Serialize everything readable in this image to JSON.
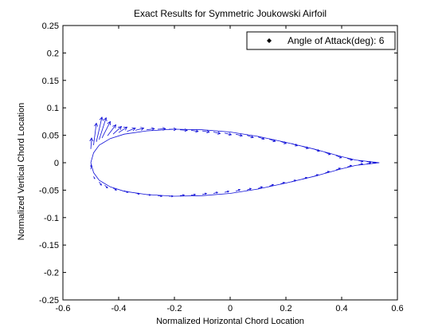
{
  "colors": {
    "vectors": "#1010d8",
    "airfoil": "#1010d8",
    "frame": "#000000",
    "background": "#ffffff"
  },
  "chart_data": {
    "type": "quiver",
    "title": "Exact Results for Symmetric Joukowski Airfoil",
    "xlabel": "Normalized Horizontal Chord Location",
    "ylabel": "Normalized Vertical Chord Location",
    "xlim": [
      -0.6,
      0.6
    ],
    "ylim": [
      -0.25,
      0.25
    ],
    "xticks": [
      "-0.6",
      "-0.4",
      "-0.2",
      "0",
      "0.2",
      "0.4",
      "0.6"
    ],
    "yticks": [
      "0.25",
      "0.2",
      "0.15",
      "0.1",
      "0.05",
      "0",
      "-0.05",
      "-0.1",
      "-0.15",
      "-0.2",
      "-0.25"
    ],
    "grid": false,
    "legend": {
      "label": "Angle of Attack(deg): 6",
      "placement": "top-right",
      "marker": "diamond"
    },
    "airfoil_outline": [
      [
        0.535,
        0.0
      ],
      [
        0.45,
        0.005
      ],
      [
        0.4,
        0.011
      ],
      [
        0.3,
        0.025
      ],
      [
        0.2,
        0.037
      ],
      [
        0.1,
        0.048
      ],
      [
        0.0,
        0.056
      ],
      [
        -0.1,
        0.06
      ],
      [
        -0.2,
        0.061
      ],
      [
        -0.3,
        0.058
      ],
      [
        -0.38,
        0.052
      ],
      [
        -0.43,
        0.044
      ],
      [
        -0.47,
        0.032
      ],
      [
        -0.49,
        0.018
      ],
      [
        -0.5,
        0.0
      ],
      [
        -0.49,
        -0.018
      ],
      [
        -0.47,
        -0.032
      ],
      [
        -0.43,
        -0.044
      ],
      [
        -0.38,
        -0.052
      ],
      [
        -0.3,
        -0.058
      ],
      [
        -0.2,
        -0.061
      ],
      [
        -0.1,
        -0.06
      ],
      [
        0.0,
        -0.056
      ],
      [
        0.1,
        -0.048
      ],
      [
        0.2,
        -0.037
      ],
      [
        0.3,
        -0.025
      ],
      [
        0.4,
        -0.011
      ],
      [
        0.45,
        -0.005
      ],
      [
        0.535,
        0.0
      ]
    ],
    "velocity_vectors": [
      {
        "x": -0.5,
        "y": 0.025,
        "u": 0.003,
        "v": 0.02
      },
      {
        "x": -0.49,
        "y": 0.032,
        "u": 0.01,
        "v": 0.04
      },
      {
        "x": -0.48,
        "y": 0.038,
        "u": 0.02,
        "v": 0.045
      },
      {
        "x": -0.47,
        "y": 0.042,
        "u": 0.025,
        "v": 0.04
      },
      {
        "x": -0.46,
        "y": 0.045,
        "u": 0.03,
        "v": 0.03
      },
      {
        "x": -0.44,
        "y": 0.049,
        "u": 0.03,
        "v": 0.02
      },
      {
        "x": -0.42,
        "y": 0.052,
        "u": 0.03,
        "v": 0.014
      },
      {
        "x": -0.4,
        "y": 0.055,
        "u": 0.03,
        "v": 0.01
      },
      {
        "x": -0.37,
        "y": 0.057,
        "u": 0.03,
        "v": 0.006
      },
      {
        "x": -0.34,
        "y": 0.059,
        "u": 0.03,
        "v": 0.004
      },
      {
        "x": -0.3,
        "y": 0.06,
        "u": 0.028,
        "v": 0.002
      },
      {
        "x": -0.26,
        "y": 0.061,
        "u": 0.028,
        "v": 0.001
      },
      {
        "x": -0.22,
        "y": 0.061,
        "u": 0.027,
        "v": 0.0
      },
      {
        "x": -0.18,
        "y": 0.06,
        "u": 0.026,
        "v": -0.001
      },
      {
        "x": -0.14,
        "y": 0.059,
        "u": 0.025,
        "v": -0.002
      },
      {
        "x": -0.1,
        "y": 0.058,
        "u": 0.025,
        "v": -0.002
      },
      {
        "x": -0.06,
        "y": 0.056,
        "u": 0.024,
        "v": -0.003
      },
      {
        "x": -0.02,
        "y": 0.054,
        "u": 0.024,
        "v": -0.003
      },
      {
        "x": 0.02,
        "y": 0.052,
        "u": 0.023,
        "v": -0.003
      },
      {
        "x": 0.06,
        "y": 0.05,
        "u": 0.023,
        "v": -0.004
      },
      {
        "x": 0.1,
        "y": 0.047,
        "u": 0.022,
        "v": -0.004
      },
      {
        "x": 0.14,
        "y": 0.043,
        "u": 0.022,
        "v": -0.004
      },
      {
        "x": 0.18,
        "y": 0.039,
        "u": 0.021,
        "v": -0.004
      },
      {
        "x": 0.22,
        "y": 0.035,
        "u": 0.021,
        "v": -0.004
      },
      {
        "x": 0.26,
        "y": 0.03,
        "u": 0.02,
        "v": -0.004
      },
      {
        "x": 0.3,
        "y": 0.025,
        "u": 0.02,
        "v": -0.004
      },
      {
        "x": 0.34,
        "y": 0.019,
        "u": 0.019,
        "v": -0.004
      },
      {
        "x": 0.38,
        "y": 0.013,
        "u": 0.019,
        "v": -0.004
      },
      {
        "x": 0.42,
        "y": 0.008,
        "u": 0.018,
        "v": -0.003
      },
      {
        "x": 0.46,
        "y": 0.004,
        "u": 0.016,
        "v": -0.002
      },
      {
        "x": 0.49,
        "y": 0.002,
        "u": 0.015,
        "v": -0.001
      },
      {
        "x": 0.51,
        "y": 0.001,
        "u": 0.013,
        "v": -0.001
      },
      {
        "x": -0.5,
        "y": -0.012,
        "u": 0.002,
        "v": 0.008
      },
      {
        "x": -0.49,
        "y": -0.025,
        "u": 0.004,
        "v": -0.004
      },
      {
        "x": -0.47,
        "y": -0.035,
        "u": 0.008,
        "v": -0.006
      },
      {
        "x": -0.45,
        "y": -0.041,
        "u": 0.01,
        "v": -0.005
      },
      {
        "x": -0.42,
        "y": -0.046,
        "u": 0.012,
        "v": -0.004
      },
      {
        "x": -0.38,
        "y": -0.051,
        "u": 0.013,
        "v": -0.003
      },
      {
        "x": -0.34,
        "y": -0.055,
        "u": 0.014,
        "v": -0.002
      },
      {
        "x": -0.3,
        "y": -0.058,
        "u": 0.014,
        "v": -0.001
      },
      {
        "x": -0.26,
        "y": -0.06,
        "u": 0.015,
        "v": -0.001
      },
      {
        "x": -0.22,
        "y": -0.061,
        "u": 0.015,
        "v": 0.0
      },
      {
        "x": -0.18,
        "y": -0.06,
        "u": 0.015,
        "v": 0.001
      },
      {
        "x": -0.14,
        "y": -0.059,
        "u": 0.015,
        "v": 0.001
      },
      {
        "x": -0.1,
        "y": -0.058,
        "u": 0.015,
        "v": 0.002
      },
      {
        "x": -0.06,
        "y": -0.056,
        "u": 0.015,
        "v": 0.002
      },
      {
        "x": -0.02,
        "y": -0.054,
        "u": 0.015,
        "v": 0.002
      },
      {
        "x": 0.02,
        "y": -0.052,
        "u": 0.015,
        "v": 0.003
      },
      {
        "x": 0.06,
        "y": -0.05,
        "u": 0.015,
        "v": 0.003
      },
      {
        "x": 0.1,
        "y": -0.047,
        "u": 0.015,
        "v": 0.003
      },
      {
        "x": 0.14,
        "y": -0.043,
        "u": 0.015,
        "v": 0.003
      },
      {
        "x": 0.18,
        "y": -0.039,
        "u": 0.015,
        "v": 0.003
      },
      {
        "x": 0.22,
        "y": -0.035,
        "u": 0.015,
        "v": 0.003
      },
      {
        "x": 0.26,
        "y": -0.03,
        "u": 0.015,
        "v": 0.003
      },
      {
        "x": 0.3,
        "y": -0.025,
        "u": 0.015,
        "v": 0.003
      },
      {
        "x": 0.34,
        "y": -0.019,
        "u": 0.015,
        "v": 0.003
      },
      {
        "x": 0.38,
        "y": -0.013,
        "u": 0.015,
        "v": 0.003
      },
      {
        "x": 0.42,
        "y": -0.008,
        "u": 0.015,
        "v": 0.003
      },
      {
        "x": 0.46,
        "y": -0.004,
        "u": 0.015,
        "v": 0.002
      },
      {
        "x": 0.49,
        "y": -0.002,
        "u": 0.014,
        "v": 0.001
      },
      {
        "x": 0.51,
        "y": -0.001,
        "u": 0.013,
        "v": 0.001
      }
    ]
  }
}
